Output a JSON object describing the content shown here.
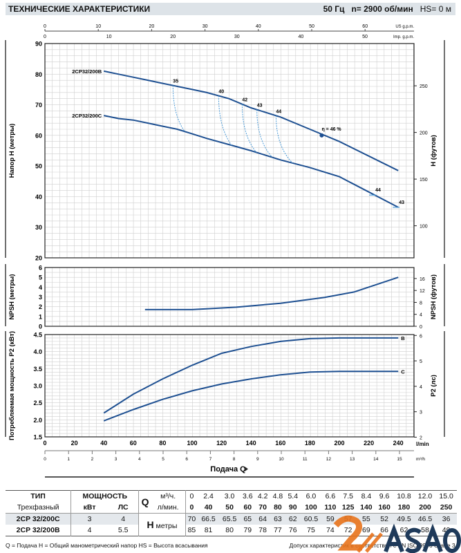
{
  "header": {
    "title": "ТЕХНИЧЕСКИЕ ХАРАКТЕРИСТИКИ",
    "freq": "50 Гц",
    "speed": "n= 2900 об/мин",
    "hs": "HS= 0 м"
  },
  "chart_data": [
    {
      "type": "line",
      "title": "Напор",
      "ylabel": "Напор H  (метры)",
      "ylabel_right": "H (футов)",
      "xlabel": "Подача Q",
      "ylim": [
        20,
        90
      ],
      "yticks": [
        20,
        30,
        40,
        50,
        60,
        70,
        80,
        90
      ],
      "yticks_right": [
        100,
        150,
        200,
        250
      ],
      "series": [
        {
          "name": "2CP32/200B",
          "x": [
            40,
            50,
            60,
            70,
            80,
            90,
            100,
            110,
            125,
            140,
            160,
            180,
            200,
            240
          ],
          "y": [
            81,
            80,
            79,
            78,
            77,
            76,
            75,
            74,
            72,
            69,
            66,
            62,
            58,
            48.5
          ]
        },
        {
          "name": "2CP32/200C",
          "x": [
            40,
            50,
            60,
            70,
            80,
            90,
            100,
            110,
            125,
            140,
            160,
            180,
            200,
            240
          ],
          "y": [
            66.5,
            65.5,
            65,
            64,
            63,
            62,
            60.5,
            59,
            57,
            55,
            52,
            49.5,
            46.5,
            36.5
          ]
        }
      ],
      "efficiency_labels": [
        {
          "text": "35",
          "q": 87
        },
        {
          "text": "40",
          "q": 118
        },
        {
          "text": "42",
          "q": 134
        },
        {
          "text": "43",
          "q": 144
        },
        {
          "text": "44",
          "q": 157
        }
      ],
      "efficiency_c_labels": [
        {
          "text": "44",
          "q": 224
        },
        {
          "text": "43",
          "q": 240
        }
      ],
      "bep": {
        "label": "η = 46 %",
        "q": 188,
        "h": 60
      }
    },
    {
      "type": "line",
      "title": "NPSH",
      "ylabel": "NPSH  (метры)",
      "ylabel_right": "NPSH (футов)",
      "ylim": [
        0,
        6
      ],
      "yticks": [
        0,
        1,
        2,
        3,
        4,
        5,
        6
      ],
      "yticks_right": [
        0,
        4,
        8,
        12,
        16
      ],
      "series": [
        {
          "name": "NPSH",
          "x": [
            68,
            100,
            130,
            160,
            190,
            210,
            240
          ],
          "y": [
            1.7,
            1.7,
            1.95,
            2.35,
            2.95,
            3.5,
            5.0
          ]
        }
      ]
    },
    {
      "type": "line",
      "title": "P2",
      "ylabel": "Потребляемая мощность  P2  (кВт)",
      "ylabel_right": "P2 (лс)",
      "ylim": [
        1.5,
        4.5
      ],
      "yticks": [
        "1.5",
        "2.0",
        "2.5",
        "3.0",
        "3.5",
        "4.0",
        "4.5"
      ],
      "yticks_right": [
        2,
        3,
        4,
        5,
        6
      ],
      "series": [
        {
          "name": "B",
          "x": [
            40,
            60,
            80,
            100,
            120,
            140,
            160,
            180,
            200,
            240
          ],
          "y": [
            2.2,
            2.75,
            3.2,
            3.6,
            3.95,
            4.15,
            4.3,
            4.38,
            4.4,
            4.4
          ]
        },
        {
          "name": "C",
          "x": [
            40,
            60,
            80,
            100,
            120,
            140,
            160,
            180,
            200,
            240
          ],
          "y": [
            1.97,
            2.3,
            2.6,
            2.85,
            3.05,
            3.2,
            3.32,
            3.4,
            3.42,
            3.42
          ]
        }
      ]
    }
  ],
  "axes": {
    "lmin_ticks": [
      0,
      20,
      40,
      60,
      80,
      100,
      120,
      140,
      160,
      180,
      200,
      220,
      240
    ],
    "lmin_unit": "l/min",
    "m3h_ticks": [
      0,
      1,
      2,
      3,
      4,
      5,
      6,
      7,
      8,
      9,
      10,
      11,
      12,
      13,
      14,
      15
    ],
    "m3h_unit": "m³/h",
    "usgpm_ticks": [
      0,
      10,
      20,
      30,
      40,
      50,
      60
    ],
    "usgpm_unit": "US g.p.m.",
    "impgpm_ticks": [
      0,
      10,
      20,
      30,
      40,
      50
    ],
    "impgpm_unit": "Imp. g.p.m.",
    "xlabel": "Подача Q"
  },
  "table": {
    "h_type": "ТИП",
    "h_power": "МОЩНОСТЬ",
    "h_phase": "Трехфазный",
    "h_kw": "кВт",
    "h_hp": "ЛС",
    "q": "Q",
    "q_unit1": "м³/ч.",
    "q_unit2": "л/мин.",
    "h": "H",
    "h_unit": "метры",
    "q_m3h": [
      "0",
      "2.4",
      "3.0",
      "3.6",
      "4.2",
      "4.8",
      "5.4",
      "6.0",
      "6.6",
      "7.5",
      "8.4",
      "9.6",
      "10.8",
      "12.0",
      "15.0"
    ],
    "q_lmin": [
      "0",
      "40",
      "50",
      "60",
      "70",
      "80",
      "90",
      "100",
      "110",
      "125",
      "140",
      "160",
      "180",
      "200",
      "250"
    ],
    "rows": [
      {
        "model": "2CP 32/200C",
        "kw": "3",
        "hp": "4",
        "h": [
          "70",
          "66.5",
          "65.5",
          "65",
          "64",
          "63",
          "62",
          "60.5",
          "59",
          "57",
          "55",
          "52",
          "49.5",
          "46.5",
          "36"
        ]
      },
      {
        "model": "2CP 32/200B",
        "kw": "4",
        "hp": "5.5",
        "h": [
          "85",
          "81",
          "80",
          "79",
          "78",
          "77",
          "76",
          "75",
          "74",
          "72",
          "69",
          "66",
          "62",
          "58",
          "49"
        ]
      }
    ]
  },
  "footer": {
    "legend": "Q = Подача   H = Общий манометрический напор   HS = Высота всасывания",
    "tolerance": "Допуск характеристик в соответствии с EN ISO 9906 Grade 3."
  },
  "logo": {
    "text": "ASAO"
  },
  "colors": {
    "curve": "#1d4f91",
    "eff": "#4a9ad8",
    "grid": "#cfcfcf"
  }
}
